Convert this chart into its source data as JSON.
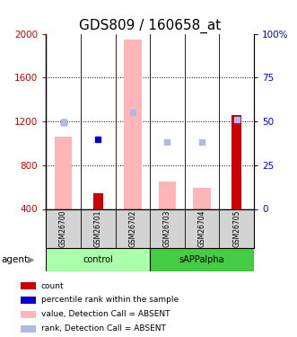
{
  "title": "GDS809 / 160658_at",
  "samples": [
    "GSM26700",
    "GSM26701",
    "GSM26702",
    "GSM26703",
    "GSM26704",
    "GSM26705"
  ],
  "ylim": [
    400,
    2000
  ],
  "yticks": [
    400,
    800,
    1200,
    1600,
    2000
  ],
  "right_yticks": [
    0,
    25,
    50,
    75,
    100
  ],
  "right_ylim": [
    0,
    100
  ],
  "pink_bar_values": [
    1060,
    0,
    1950,
    650,
    590,
    0
  ],
  "red_bar_values": [
    0,
    540,
    0,
    0,
    0,
    1260
  ],
  "blue_square_values": [
    1195,
    1035,
    0,
    0,
    0,
    1220
  ],
  "light_blue_square_values": [
    1195,
    0,
    1285,
    1010,
    1010,
    1220
  ],
  "pink_color": "#ffb6b6",
  "red_color": "#cc0000",
  "blue_color": "#0000cc",
  "light_blue_color": "#b0b8e8",
  "title_fontsize": 11,
  "left_axis_color": "#cc0000",
  "right_axis_color": "#0000cc",
  "bar_width": 0.5,
  "red_bar_width": 0.28,
  "background_color": "#ffffff",
  "plot_bg_color": "#ffffff",
  "sample_label_bg": "#d3d3d3",
  "ctrl_color": "#aaffaa",
  "sapp_color": "#44cc44",
  "legend_items": [
    {
      "color": "#cc0000",
      "label": "count"
    },
    {
      "color": "#0000cc",
      "label": "percentile rank within the sample"
    },
    {
      "color": "#ffb6b6",
      "label": "value, Detection Call = ABSENT"
    },
    {
      "color": "#b0b8e8",
      "label": "rank, Detection Call = ABSENT"
    }
  ]
}
